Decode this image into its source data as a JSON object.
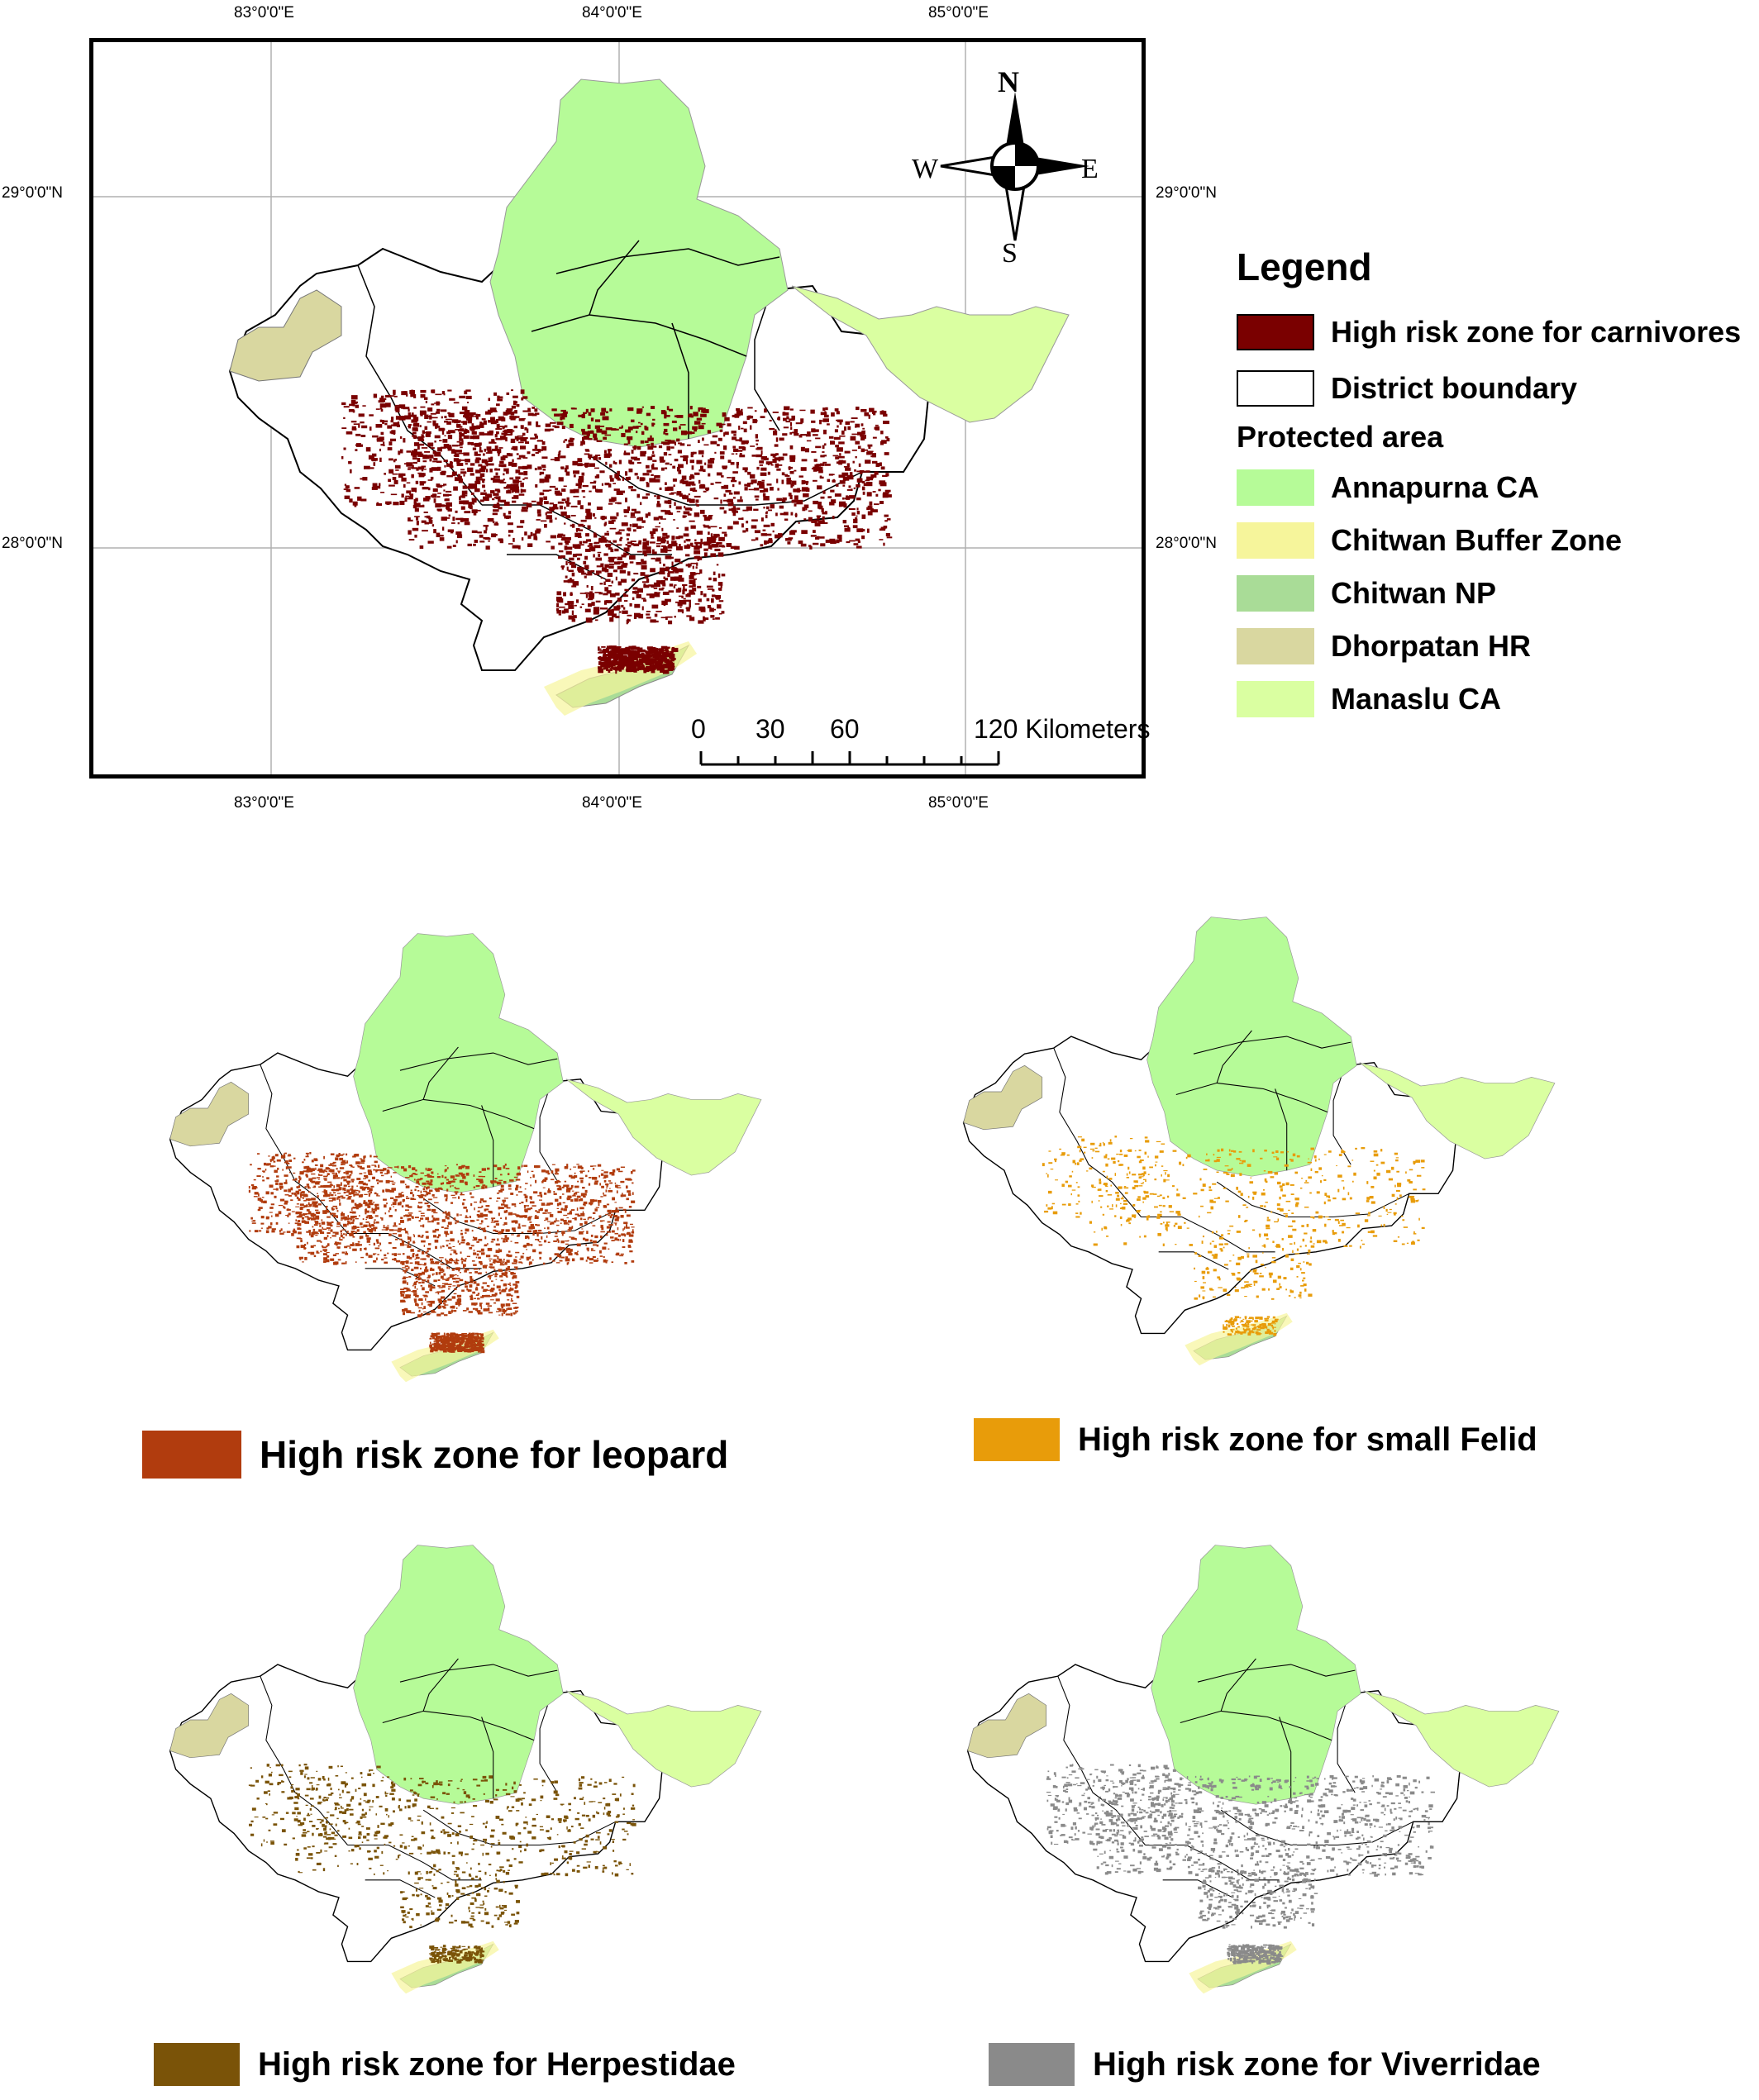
{
  "main_map": {
    "lon_ticks": [
      "83°0'0\"E",
      "84°0'0\"E",
      "85°0'0\"E"
    ],
    "lat_ticks": [
      "29°0'0\"N",
      "28°0'0\"N"
    ],
    "north_arrow": {
      "n": "N",
      "s": "S",
      "e": "E",
      "w": "W"
    },
    "scale_bar": {
      "labels": [
        "0",
        "30",
        "60",
        "120 Kilometers"
      ]
    }
  },
  "legend": {
    "title": "Legend",
    "items": [
      {
        "label": "High risk zone for carnivores",
        "color": "#7a0000"
      },
      {
        "label": "District boundary",
        "color": "#ffffff"
      },
      {
        "label": "Protected area",
        "color": "",
        "is_header": true
      },
      {
        "label": "Annapurna CA",
        "color": "#b6fb98"
      },
      {
        "label": "Chitwan Buffer Zone",
        "color": "#f6f59b"
      },
      {
        "label": "Chitwan NP",
        "color": "#a9dc97"
      },
      {
        "label": "Dhorpatan HR",
        "color": "#d9d7a0"
      },
      {
        "label": "Manaslu CA",
        "color": "#daffa1"
      }
    ]
  },
  "species_maps": [
    {
      "label": "High risk zone for leopard",
      "color": "#b13c0e"
    },
    {
      "label": "High risk zone for small Felid",
      "color": "#e89c0a"
    },
    {
      "label": "High risk zone for Herpestidae",
      "color": "#7a5308"
    },
    {
      "label": "High risk zone for Viverridae",
      "color": "#8a8a8a"
    }
  ]
}
